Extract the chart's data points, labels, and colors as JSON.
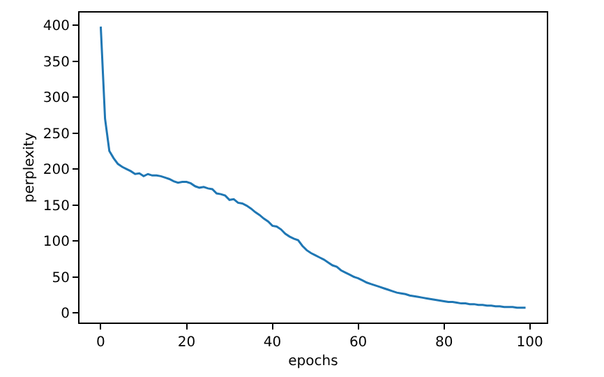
{
  "chart_data": {
    "type": "line",
    "xlabel": "epochs",
    "ylabel": "perplexity",
    "x": [
      0,
      1,
      2,
      3,
      4,
      5,
      6,
      7,
      8,
      9,
      10,
      11,
      12,
      13,
      14,
      15,
      16,
      17,
      18,
      19,
      20,
      21,
      22,
      23,
      24,
      25,
      26,
      27,
      28,
      29,
      30,
      31,
      32,
      33,
      34,
      35,
      36,
      37,
      38,
      39,
      40,
      41,
      42,
      43,
      44,
      45,
      46,
      47,
      48,
      49,
      50,
      51,
      52,
      53,
      54,
      55,
      56,
      57,
      58,
      59,
      60,
      61,
      62,
      63,
      64,
      65,
      66,
      67,
      68,
      69,
      70,
      71,
      72,
      73,
      74,
      75,
      76,
      77,
      78,
      79,
      80,
      81,
      82,
      83,
      84,
      85,
      86,
      87,
      88,
      89,
      90,
      91,
      92,
      93,
      94,
      95,
      96,
      97,
      98,
      99
    ],
    "series": [
      {
        "color": "#1f77b4",
        "values": [
          398,
          270,
          225,
          215,
          207,
          203,
          200,
          197,
          193,
          194,
          190,
          193,
          191,
          191,
          190,
          188,
          186,
          183,
          181,
          182,
          182,
          180,
          176,
          174,
          175,
          173,
          172,
          166,
          165,
          163,
          157,
          158,
          153,
          152,
          149,
          145,
          140,
          136,
          131,
          127,
          121,
          120,
          116,
          110,
          106,
          103,
          101,
          93,
          87,
          83,
          80,
          77,
          74,
          70,
          66,
          64,
          59,
          56,
          53,
          50,
          48,
          45,
          42,
          40,
          38,
          36,
          34,
          32,
          30,
          28,
          27,
          26,
          24,
          23,
          22,
          21,
          20,
          19,
          18,
          17,
          16,
          15,
          15,
          14,
          13,
          13,
          12,
          12,
          11,
          11,
          10,
          10,
          9,
          9,
          8,
          8,
          8,
          7,
          7,
          7
        ]
      }
    ],
    "xlim": [
      -4.95,
      103.95
    ],
    "xticks": [
      0,
      20,
      40,
      60,
      80,
      100
    ],
    "ylim": [
      -13.6,
      417.6
    ],
    "yticks": [
      0,
      50,
      100,
      150,
      200,
      250,
      300,
      350,
      400
    ],
    "marker": "none",
    "line_style": "solid"
  }
}
